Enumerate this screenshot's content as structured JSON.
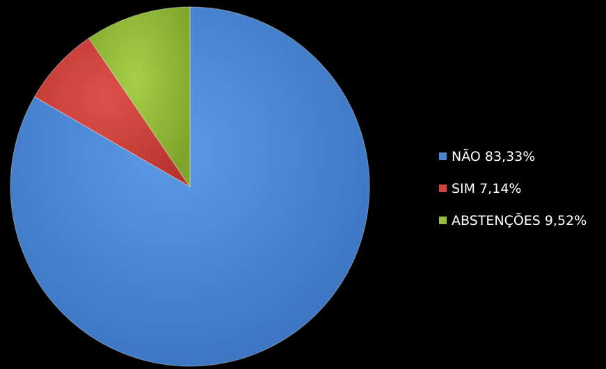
{
  "chart_data": {
    "type": "pie",
    "title": "",
    "start_angle": "12 o'clock",
    "direction": "clockwise",
    "legend_position": "right",
    "slices": [
      {
        "label": "NÃO 83,33%",
        "value": 83.33,
        "color": "#4a86d6"
      },
      {
        "label": "SIM 7,14%",
        "value": 7.14,
        "color": "#d0433e"
      },
      {
        "label": "ABSTENÇÕES 9,52%",
        "value": 9.52,
        "color": "#96bf3a"
      }
    ]
  }
}
